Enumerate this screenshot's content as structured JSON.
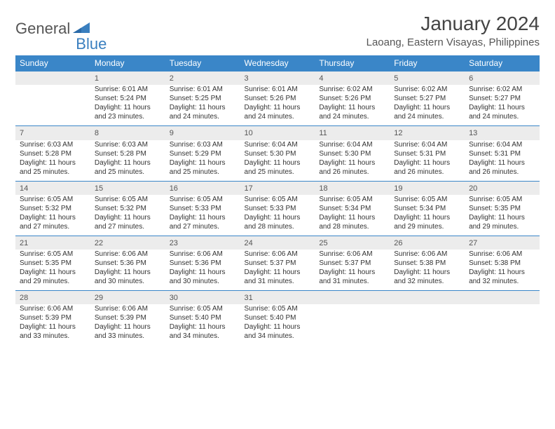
{
  "logo": {
    "word1": "General",
    "word2": "Blue"
  },
  "title": "January 2024",
  "location": "Laoang, Eastern Visayas, Philippines",
  "colors": {
    "header_bg": "#3a86c8",
    "header_fg": "#ffffff",
    "row_border": "#3a86c8",
    "daynum_bg": "#ececec",
    "text": "#333333",
    "logo_gray": "#555555",
    "logo_blue": "#3a7fbf"
  },
  "weekdays": [
    "Sunday",
    "Monday",
    "Tuesday",
    "Wednesday",
    "Thursday",
    "Friday",
    "Saturday"
  ],
  "labels": {
    "sunrise": "Sunrise:",
    "sunset": "Sunset:",
    "daylight": "Daylight:"
  },
  "start_offset": 1,
  "days": [
    {
      "n": "1",
      "sr": "6:01 AM",
      "ss": "5:24 PM",
      "dl": "11 hours and 23 minutes."
    },
    {
      "n": "2",
      "sr": "6:01 AM",
      "ss": "5:25 PM",
      "dl": "11 hours and 24 minutes."
    },
    {
      "n": "3",
      "sr": "6:01 AM",
      "ss": "5:26 PM",
      "dl": "11 hours and 24 minutes."
    },
    {
      "n": "4",
      "sr": "6:02 AM",
      "ss": "5:26 PM",
      "dl": "11 hours and 24 minutes."
    },
    {
      "n": "5",
      "sr": "6:02 AM",
      "ss": "5:27 PM",
      "dl": "11 hours and 24 minutes."
    },
    {
      "n": "6",
      "sr": "6:02 AM",
      "ss": "5:27 PM",
      "dl": "11 hours and 24 minutes."
    },
    {
      "n": "7",
      "sr": "6:03 AM",
      "ss": "5:28 PM",
      "dl": "11 hours and 25 minutes."
    },
    {
      "n": "8",
      "sr": "6:03 AM",
      "ss": "5:28 PM",
      "dl": "11 hours and 25 minutes."
    },
    {
      "n": "9",
      "sr": "6:03 AM",
      "ss": "5:29 PM",
      "dl": "11 hours and 25 minutes."
    },
    {
      "n": "10",
      "sr": "6:04 AM",
      "ss": "5:30 PM",
      "dl": "11 hours and 25 minutes."
    },
    {
      "n": "11",
      "sr": "6:04 AM",
      "ss": "5:30 PM",
      "dl": "11 hours and 26 minutes."
    },
    {
      "n": "12",
      "sr": "6:04 AM",
      "ss": "5:31 PM",
      "dl": "11 hours and 26 minutes."
    },
    {
      "n": "13",
      "sr": "6:04 AM",
      "ss": "5:31 PM",
      "dl": "11 hours and 26 minutes."
    },
    {
      "n": "14",
      "sr": "6:05 AM",
      "ss": "5:32 PM",
      "dl": "11 hours and 27 minutes."
    },
    {
      "n": "15",
      "sr": "6:05 AM",
      "ss": "5:32 PM",
      "dl": "11 hours and 27 minutes."
    },
    {
      "n": "16",
      "sr": "6:05 AM",
      "ss": "5:33 PM",
      "dl": "11 hours and 27 minutes."
    },
    {
      "n": "17",
      "sr": "6:05 AM",
      "ss": "5:33 PM",
      "dl": "11 hours and 28 minutes."
    },
    {
      "n": "18",
      "sr": "6:05 AM",
      "ss": "5:34 PM",
      "dl": "11 hours and 28 minutes."
    },
    {
      "n": "19",
      "sr": "6:05 AM",
      "ss": "5:34 PM",
      "dl": "11 hours and 29 minutes."
    },
    {
      "n": "20",
      "sr": "6:05 AM",
      "ss": "5:35 PM",
      "dl": "11 hours and 29 minutes."
    },
    {
      "n": "21",
      "sr": "6:05 AM",
      "ss": "5:35 PM",
      "dl": "11 hours and 29 minutes."
    },
    {
      "n": "22",
      "sr": "6:06 AM",
      "ss": "5:36 PM",
      "dl": "11 hours and 30 minutes."
    },
    {
      "n": "23",
      "sr": "6:06 AM",
      "ss": "5:36 PM",
      "dl": "11 hours and 30 minutes."
    },
    {
      "n": "24",
      "sr": "6:06 AM",
      "ss": "5:37 PM",
      "dl": "11 hours and 31 minutes."
    },
    {
      "n": "25",
      "sr": "6:06 AM",
      "ss": "5:37 PM",
      "dl": "11 hours and 31 minutes."
    },
    {
      "n": "26",
      "sr": "6:06 AM",
      "ss": "5:38 PM",
      "dl": "11 hours and 32 minutes."
    },
    {
      "n": "27",
      "sr": "6:06 AM",
      "ss": "5:38 PM",
      "dl": "11 hours and 32 minutes."
    },
    {
      "n": "28",
      "sr": "6:06 AM",
      "ss": "5:39 PM",
      "dl": "11 hours and 33 minutes."
    },
    {
      "n": "29",
      "sr": "6:06 AM",
      "ss": "5:39 PM",
      "dl": "11 hours and 33 minutes."
    },
    {
      "n": "30",
      "sr": "6:05 AM",
      "ss": "5:40 PM",
      "dl": "11 hours and 34 minutes."
    },
    {
      "n": "31",
      "sr": "6:05 AM",
      "ss": "5:40 PM",
      "dl": "11 hours and 34 minutes."
    }
  ]
}
